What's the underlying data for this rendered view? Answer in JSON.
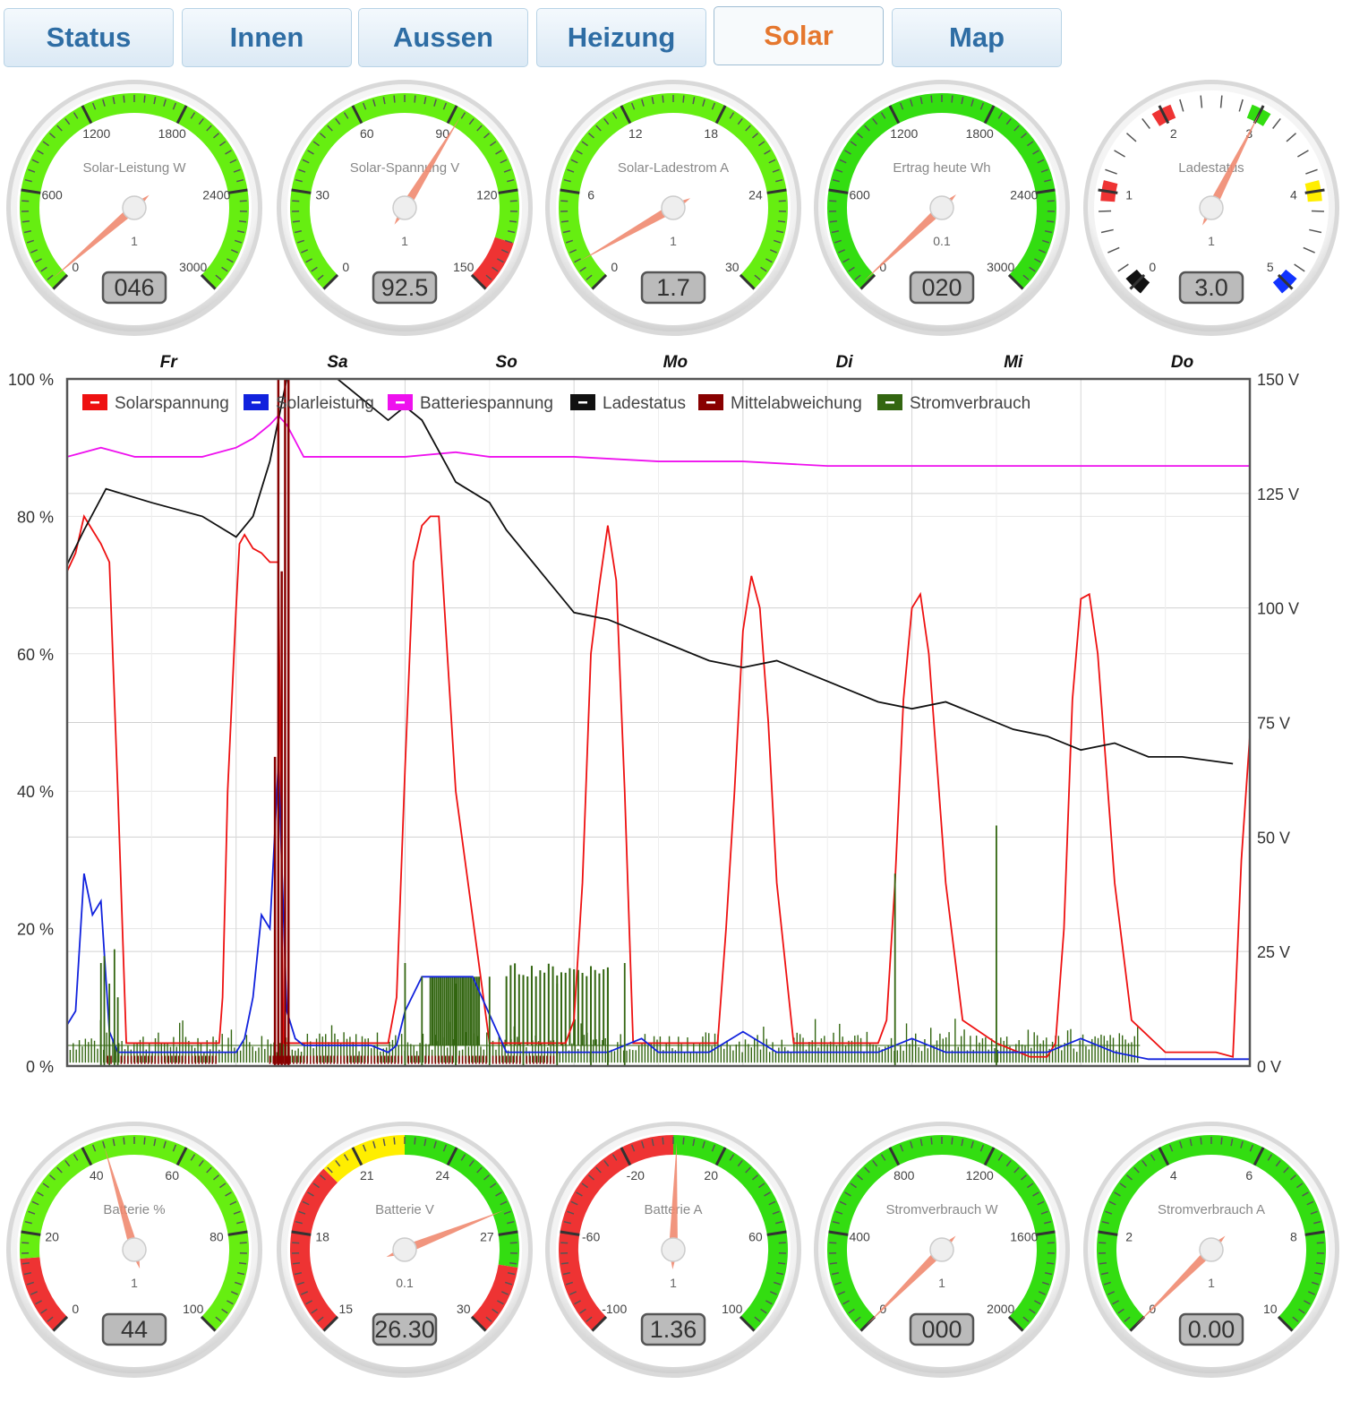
{
  "tabs": [
    {
      "label": "Status",
      "active": false
    },
    {
      "label": "Innen",
      "active": false
    },
    {
      "label": "Aussen",
      "active": false
    },
    {
      "label": "Heizung",
      "active": false
    },
    {
      "label": "Solar",
      "active": true
    },
    {
      "label": "Map",
      "active": false
    }
  ],
  "colors": {
    "green": "#33dd11",
    "lime": "#66ee11",
    "red": "#ee3333",
    "yellow": "#ffee00",
    "black": "#111111",
    "blue": "#1133ff",
    "needle": "#f08a70"
  },
  "gauges_top": [
    {
      "title": "Solar-Leistung W",
      "ticks": [
        "0",
        "600",
        "1200",
        "1800",
        "2400",
        "3000"
      ],
      "multiplier": "1",
      "readout": "046",
      "value": 46,
      "min": 0,
      "max": 3000,
      "bands": [
        {
          "from": 0,
          "to": 3000,
          "color": "lime"
        }
      ]
    },
    {
      "title": "Solar-Spannung V",
      "ticks": [
        "0",
        "30",
        "60",
        "90",
        "120",
        "150"
      ],
      "multiplier": "1",
      "readout": "92.5",
      "value": 92.5,
      "min": 0,
      "max": 150,
      "bands": [
        {
          "from": 0,
          "to": 135,
          "color": "lime"
        },
        {
          "from": 135,
          "to": 150,
          "color": "red"
        }
      ]
    },
    {
      "title": "Solar-Ladestrom A",
      "ticks": [
        "0",
        "6",
        "12",
        "18",
        "24",
        "30"
      ],
      "multiplier": "1",
      "readout": "1.7",
      "value": 1.7,
      "min": 0,
      "max": 30,
      "bands": [
        {
          "from": 0,
          "to": 30,
          "color": "lime"
        }
      ]
    },
    {
      "title": "Ertrag heute Wh",
      "ticks": [
        "0",
        "600",
        "1200",
        "1800",
        "2400",
        "3000"
      ],
      "multiplier": "0.1",
      "readout": "020",
      "value": 20,
      "min": 0,
      "max": 3000,
      "bands": [
        {
          "from": 0,
          "to": 3000,
          "color": "green"
        }
      ]
    },
    {
      "title": "Ladestatus",
      "ticks": [
        "0",
        "1",
        "2",
        "3",
        "4",
        "5"
      ],
      "multiplier": "1",
      "readout": "3.0",
      "value": 3.0,
      "min": 0,
      "max": 5,
      "discrete": true,
      "bands": [
        {
          "from": -0.1,
          "to": 0.1,
          "color": "black"
        },
        {
          "from": 0.9,
          "to": 1.1,
          "color": "red"
        },
        {
          "from": 1.9,
          "to": 2.1,
          "color": "red"
        },
        {
          "from": 2.9,
          "to": 3.1,
          "color": "green"
        },
        {
          "from": 3.9,
          "to": 4.1,
          "color": "yellow"
        },
        {
          "from": 4.9,
          "to": 5.1,
          "color": "blue"
        }
      ]
    }
  ],
  "gauges_bottom": [
    {
      "title": "Batterie %",
      "ticks": [
        "0",
        "20",
        "40",
        "60",
        "80",
        "100"
      ],
      "multiplier": "1",
      "readout": "44",
      "value": 44,
      "min": 0,
      "max": 100,
      "bands": [
        {
          "from": 0,
          "to": 15,
          "color": "red"
        },
        {
          "from": 15,
          "to": 100,
          "color": "lime"
        }
      ]
    },
    {
      "title": "Batterie V",
      "ticks": [
        "15",
        "18",
        "21",
        "24",
        "27",
        "30"
      ],
      "multiplier": "0.1",
      "readout": "26.30",
      "value": 26.3,
      "min": 15,
      "max": 30,
      "bands": [
        {
          "from": 15,
          "to": 20,
          "color": "red"
        },
        {
          "from": 20,
          "to": 22.5,
          "color": "yellow"
        },
        {
          "from": 22.5,
          "to": 28,
          "color": "green"
        },
        {
          "from": 28,
          "to": 30,
          "color": "red"
        }
      ]
    },
    {
      "title": "Batterie A",
      "ticks": [
        "-100",
        "-60",
        "-20",
        "20",
        "60",
        "100"
      ],
      "multiplier": "1",
      "readout": "1.36",
      "value": 1.36,
      "min": -100,
      "max": 100,
      "bands": [
        {
          "from": -100,
          "to": 0,
          "color": "red"
        },
        {
          "from": 0,
          "to": 100,
          "color": "green"
        }
      ]
    },
    {
      "title": "Stromverbrauch W",
      "ticks": [
        "0",
        "400",
        "800",
        "1200",
        "1600",
        "2000"
      ],
      "multiplier": "1",
      "readout": "000",
      "value": 0,
      "min": 0,
      "max": 2000,
      "bands": [
        {
          "from": 0,
          "to": 2000,
          "color": "green"
        }
      ]
    },
    {
      "title": "Stromverbrauch A",
      "ticks": [
        "0",
        "2",
        "4",
        "6",
        "8",
        "10"
      ],
      "multiplier": "1",
      "readout": "0.00",
      "value": 0,
      "min": 0,
      "max": 10,
      "bands": [
        {
          "from": 0,
          "to": 10,
          "color": "green"
        }
      ]
    }
  ],
  "chart_data": {
    "type": "line",
    "days": [
      "Fr",
      "Sa",
      "So",
      "Mo",
      "Di",
      "Mi",
      "Do"
    ],
    "x_range": [
      0,
      7
    ],
    "y_left": {
      "ticks": [
        "0 %",
        "20 %",
        "40 %",
        "60 %",
        "80 %",
        "100 %"
      ],
      "ylim": [
        0,
        100
      ]
    },
    "y_right": {
      "ticks": [
        "0 V",
        "25 V",
        "50 V",
        "75 V",
        "100 V",
        "125 V",
        "150 V"
      ],
      "ylim": [
        0,
        150
      ]
    },
    "grid": true,
    "legend_position": "top-left",
    "series": [
      {
        "name": "Solarspannung",
        "color": "#ee1111",
        "axis": "right",
        "x": [
          0.0,
          0.05,
          0.1,
          0.15,
          0.2,
          0.25,
          0.3,
          0.35,
          0.4,
          0.45,
          0.5,
          0.55,
          0.6,
          0.62,
          0.7,
          0.8,
          0.9,
          0.92,
          0.95,
          1.0,
          1.02,
          1.05,
          1.1,
          1.15,
          1.2,
          1.22,
          1.25,
          1.28,
          1.3,
          1.3,
          1.5,
          1.6,
          1.8,
          1.9,
          1.95,
          2.0,
          2.05,
          2.1,
          2.15,
          2.2,
          2.3,
          2.5,
          2.6,
          2.7,
          2.8,
          2.85,
          2.9,
          2.95,
          3.0,
          3.05,
          3.1,
          3.15,
          3.2,
          3.25,
          3.3,
          3.35,
          3.5,
          3.7,
          3.8,
          3.85,
          3.9,
          3.95,
          4.0,
          4.05,
          4.1,
          4.15,
          4.2,
          4.3,
          4.5,
          4.7,
          4.8,
          4.85,
          4.9,
          4.95,
          5.0,
          5.05,
          5.1,
          5.2,
          5.3,
          5.5,
          5.7,
          5.8,
          5.85,
          5.9,
          5.95,
          6.0,
          6.05,
          6.1,
          6.2,
          6.3,
          6.5,
          6.8,
          6.9,
          6.95,
          7.0
        ],
        "y": [
          108,
          112,
          120,
          117,
          114,
          110,
          60,
          5,
          5,
          5,
          5,
          5,
          5,
          5,
          5,
          5,
          5,
          15,
          60,
          100,
          114,
          116,
          113,
          112,
          110,
          110,
          110,
          5,
          5,
          5,
          5,
          5,
          5,
          5,
          15,
          65,
          110,
          118,
          120,
          120,
          60,
          5,
          5,
          5,
          5,
          5,
          5,
          5,
          10,
          40,
          90,
          105,
          118,
          106,
          60,
          5,
          5,
          5,
          5,
          5,
          30,
          60,
          95,
          107,
          100,
          75,
          40,
          5,
          5,
          5,
          5,
          10,
          40,
          80,
          100,
          103,
          90,
          40,
          10,
          5,
          2,
          2,
          5,
          30,
          80,
          102,
          103,
          90,
          40,
          10,
          3,
          3,
          2,
          45,
          72
        ]
      },
      {
        "name": "Solarleistung",
        "color": "#1122dd",
        "axis": "left",
        "x": [
          0.0,
          0.05,
          0.1,
          0.15,
          0.2,
          0.25,
          0.3,
          0.4,
          1.0,
          1.05,
          1.1,
          1.15,
          1.2,
          1.25,
          1.3,
          1.35,
          1.4,
          1.5,
          1.8,
          1.9,
          1.95,
          2.0,
          2.1,
          2.2,
          2.4,
          2.6,
          2.8,
          3.0,
          3.2,
          3.4,
          3.5,
          3.7,
          3.8,
          4.0,
          4.2,
          4.4,
          4.6,
          4.8,
          5.0,
          5.2,
          5.4,
          5.6,
          5.8,
          6.0,
          6.2,
          6.4,
          6.6,
          6.8,
          7.0
        ],
        "y": [
          6,
          8,
          28,
          22,
          24,
          5,
          2,
          2,
          2,
          4,
          10,
          22,
          20,
          44,
          8,
          4,
          3,
          3,
          3,
          2,
          3,
          8,
          13,
          13,
          13,
          2,
          2,
          2,
          2,
          4,
          2,
          2,
          2,
          5,
          2,
          2,
          2,
          2,
          4,
          2,
          2,
          2,
          2,
          4,
          2,
          1,
          1,
          1,
          1
        ]
      },
      {
        "name": "Batteriespannung",
        "color": "#ee11ee",
        "axis": "right",
        "x": [
          0.0,
          0.2,
          0.4,
          0.6,
          0.8,
          1.0,
          1.1,
          1.2,
          1.25,
          1.3,
          1.4,
          1.5,
          2.0,
          2.3,
          2.5,
          3.0,
          3.5,
          4.0,
          4.5,
          5.0,
          5.5,
          6.0,
          6.5,
          7.0
        ],
        "y": [
          133,
          135,
          133,
          133,
          133,
          135,
          137,
          140,
          142,
          140,
          133,
          133,
          133,
          134,
          133,
          133,
          132,
          132,
          131,
          131,
          131,
          131,
          131,
          131
        ]
      },
      {
        "name": "Ladestatus",
        "color": "#111111",
        "axis": "left",
        "x": [
          0.0,
          0.1,
          0.23,
          0.5,
          0.8,
          1.0,
          1.1,
          1.2,
          1.25,
          1.3,
          1.6,
          1.9,
          2.0,
          2.1,
          2.3,
          2.5,
          2.6,
          2.8,
          3.0,
          3.2,
          3.4,
          3.6,
          3.8,
          4.0,
          4.2,
          4.4,
          4.6,
          4.8,
          5.0,
          5.2,
          5.4,
          5.6,
          5.8,
          6.0,
          6.2,
          6.4,
          6.6,
          6.9
        ],
        "y": [
          73,
          78,
          84,
          82,
          80,
          77,
          80,
          88,
          94,
          100,
          100,
          94,
          96,
          94,
          85,
          82,
          78,
          72,
          66,
          65,
          63,
          61,
          59,
          58,
          59,
          57,
          55,
          53,
          52,
          53,
          51,
          49,
          48,
          46,
          47,
          45,
          45,
          44
        ]
      },
      {
        "name": "Mittelabweichung",
        "color": "#880000",
        "axis": "left",
        "x": [
          1.22,
          1.23,
          1.24,
          1.25,
          1.26,
          1.27,
          1.28,
          1.29,
          1.3,
          1.31,
          1.32
        ],
        "y": [
          0,
          45,
          0,
          100,
          0,
          72,
          0,
          100,
          0,
          100,
          0
        ]
      },
      {
        "name": "Stromverbrauch",
        "color": "#336611",
        "axis": "left",
        "x": [
          0.2,
          0.22,
          0.25,
          0.28,
          0.3,
          2.0,
          2.1,
          2.3,
          2.5,
          2.7,
          2.9,
          3.1,
          3.2,
          3.3,
          4.9,
          5.5
        ],
        "y": [
          15,
          16,
          12,
          17,
          10,
          15,
          13,
          12,
          13,
          13,
          12,
          13,
          14,
          15,
          28,
          35
        ]
      }
    ]
  }
}
